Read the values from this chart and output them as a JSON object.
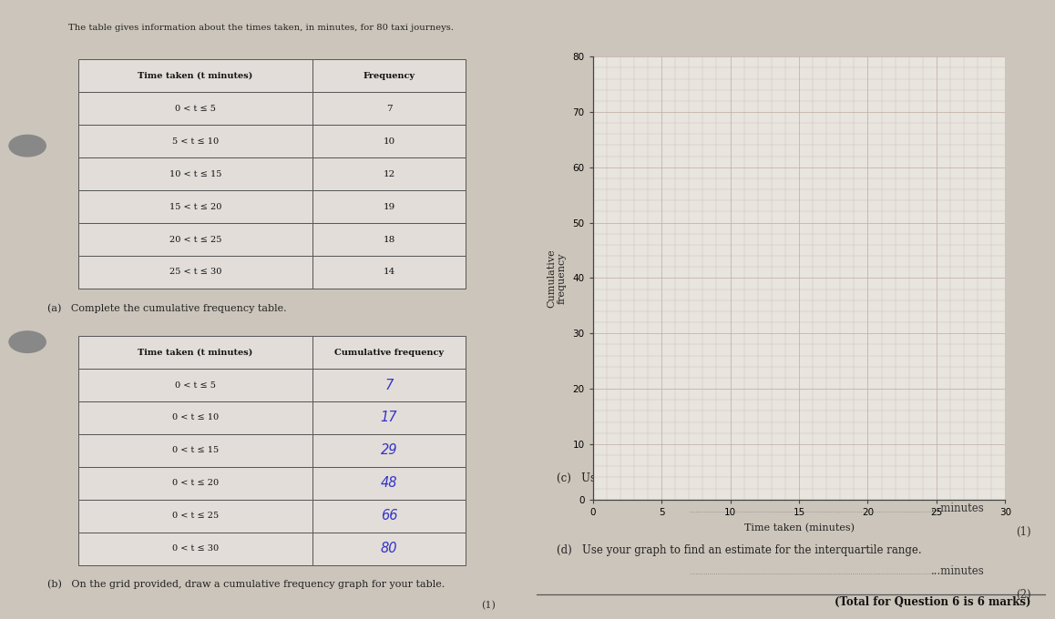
{
  "bg_color": "#ccc5bb",
  "title_text": "The table gives information about the times taken, in minutes, for 80 taxi journeys.",
  "freq_table": {
    "headers": [
      "Time taken (t minutes)",
      "Frequency"
    ],
    "rows": [
      [
        "0 < t ≤ 5",
        "7"
      ],
      [
        "5 < t ≤ 10",
        "10"
      ],
      [
        "10 < t ≤ 15",
        "12"
      ],
      [
        "15 < t ≤ 20",
        "19"
      ],
      [
        "20 < t ≤ 25",
        "18"
      ],
      [
        "25 < t ≤ 30",
        "14"
      ]
    ]
  },
  "cumfreq_table": {
    "headers": [
      "Time taken (t minutes)",
      "Cumulative frequency"
    ],
    "rows": [
      [
        "0 < t ≤ 5",
        "7"
      ],
      [
        "0 < t ≤ 10",
        "17"
      ],
      [
        "0 < t ≤ 15",
        "29"
      ],
      [
        "0 < t ≤ 20",
        "48"
      ],
      [
        "0 < t ≤ 25",
        "66"
      ],
      [
        "0 < t ≤ 30",
        "80"
      ]
    ]
  },
  "part_a_text": "(a)   Complete the cumulative frequency table.",
  "part_b_text": "(b)   On the grid provided, draw a cumulative frequency graph for your table.",
  "part_b_mark": "(1)",
  "part_c_text": "(c)   Use your graph to find an estimate for the median.",
  "part_c_answer": "...minutes",
  "part_c_mark": "(1)",
  "part_d_text": "(d)   Use your graph to find an estimate for the interquartile range.",
  "part_d_answer": "...minutes",
  "part_d_mark": "(2)",
  "total_text": "(Total for Question 6 is 6 marks)",
  "graph_ylabel": "Cumulative\nfrequency",
  "graph_xlabel": "Time taken (minutes)",
  "graph_xlim": [
    0,
    30
  ],
  "graph_ylim": [
    0,
    80
  ],
  "graph_yticks": [
    0,
    10,
    20,
    30,
    40,
    50,
    60,
    70,
    80
  ],
  "graph_xticks": [
    0,
    5,
    10,
    15,
    20,
    25,
    30
  ],
  "cumfreq_values_written": [
    "7",
    "17",
    "29",
    "48",
    "66",
    "80"
  ],
  "written_color": "#3333cc"
}
